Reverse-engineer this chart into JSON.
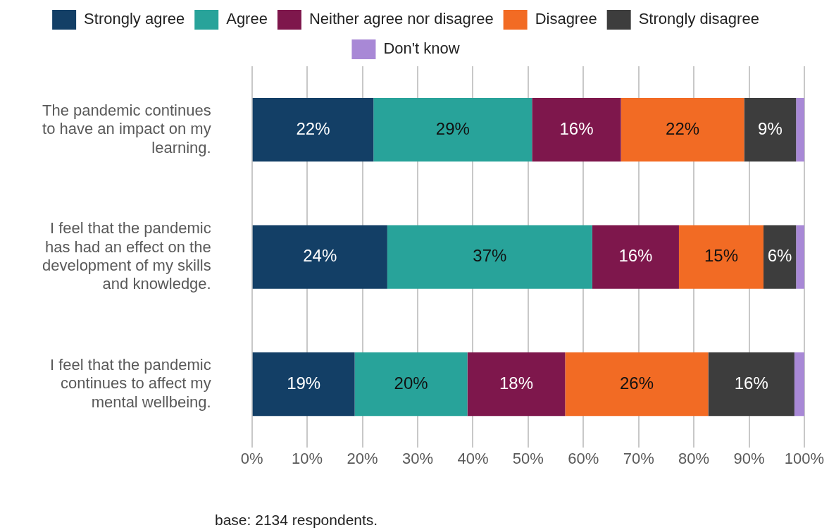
{
  "chart_data": {
    "type": "bar",
    "orientation": "horizontal",
    "stacked": true,
    "categories": [
      "The pandemic continues to have an impact on my learning.",
      "I feel that the pandemic has had an effect on the development of my skills and knowledge.",
      "I feel that the pandemic continues to affect my mental wellbeing."
    ],
    "series": [
      {
        "name": "Strongly agree",
        "color": "#133f66",
        "values": [
          22.0,
          24.5,
          18.6
        ],
        "value_labels": [
          "22%",
          "24%",
          "19%"
        ]
      },
      {
        "name": "Agree",
        "color": "#28a39a",
        "values": [
          28.7,
          37.1,
          20.4
        ],
        "value_labels": [
          "29%",
          "37%",
          "20%"
        ]
      },
      {
        "name": "Neither agree nor disagree",
        "color": "#7e174c",
        "values": [
          16.1,
          15.7,
          17.7
        ],
        "value_labels": [
          "16%",
          "16%",
          "18%"
        ]
      },
      {
        "name": "Disagree",
        "color": "#f26b24",
        "values": [
          22.3,
          15.3,
          25.9
        ],
        "value_labels": [
          "22%",
          "15%",
          "26%"
        ]
      },
      {
        "name": "Strongly disagree",
        "color": "#3d3d3d",
        "values": [
          9.4,
          5.9,
          15.6
        ],
        "value_labels": [
          "9%",
          "6%",
          "16%"
        ]
      },
      {
        "name": "Don't know",
        "color": "#a888d6",
        "values": [
          1.5,
          1.5,
          1.8
        ],
        "value_labels": [
          null,
          null,
          null
        ]
      }
    ],
    "xlim": [
      0,
      100
    ],
    "xticks": [
      {
        "value": 0,
        "label": "0%"
      },
      {
        "value": 10,
        "label": "10%"
      },
      {
        "value": 20,
        "label": "20%"
      },
      {
        "value": 30,
        "label": "30%"
      },
      {
        "value": 40,
        "label": "40%"
      },
      {
        "value": 50,
        "label": "50%"
      },
      {
        "value": 60,
        "label": "60%"
      },
      {
        "value": 70,
        "label": "70%"
      },
      {
        "value": 80,
        "label": "80%"
      },
      {
        "value": 90,
        "label": "90%"
      },
      {
        "value": 100,
        "label": "100%"
      }
    ],
    "grid": "x",
    "legend": "top",
    "annotations": [
      "base: 2134 respondents."
    ]
  }
}
